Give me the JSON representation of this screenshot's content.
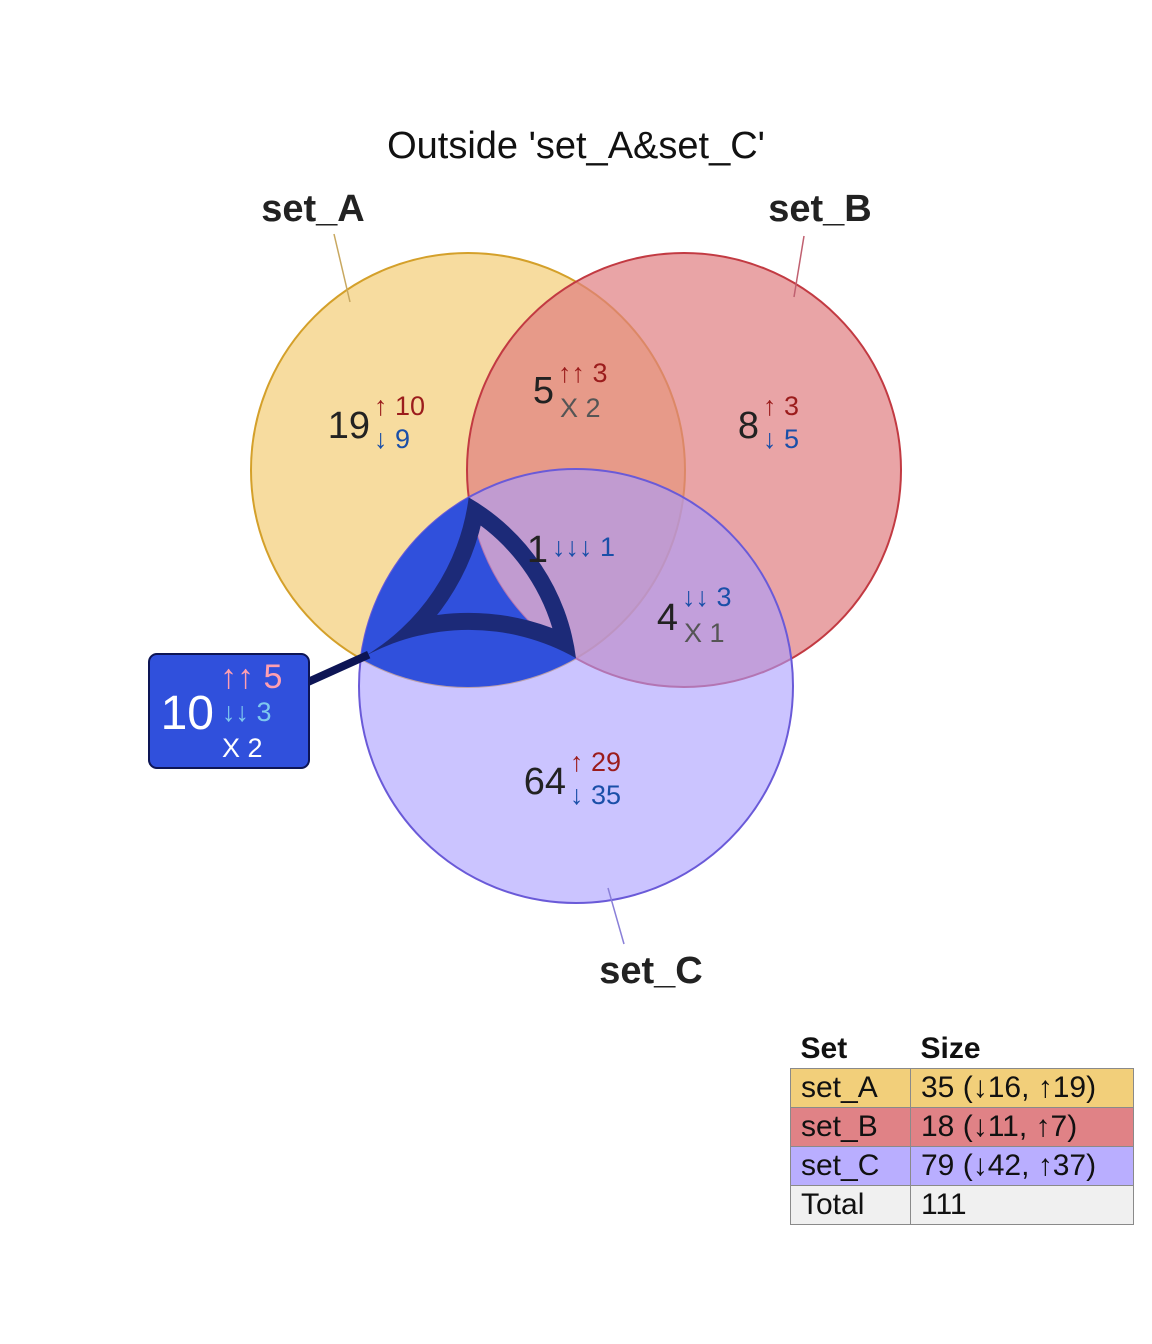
{
  "title": "Outside 'set_A&set_C'",
  "sets": [
    {
      "id": "A",
      "label": "set_A",
      "fill": "#f2c45f",
      "stroke": "#d4a02a",
      "labelColor": "#222222"
    },
    {
      "id": "B",
      "label": "set_B",
      "fill": "#e07d80",
      "stroke": "#c23a42",
      "labelColor": "#222222"
    },
    {
      "id": "C",
      "label": "set_C",
      "fill": "#a89cff",
      "stroke": "#6a5ad8",
      "labelColor": "#222222"
    }
  ],
  "regions": [
    {
      "id": "A-only",
      "count": "19",
      "lines": [
        {
          "sym": "↑",
          "num": "10",
          "color": "#9b1c1c"
        },
        {
          "sym": "↓",
          "num": "9",
          "color": "#1a4fa8"
        }
      ]
    },
    {
      "id": "AB-only",
      "count": "5",
      "lines": [
        {
          "sym": "↑↑",
          "num": "3",
          "color": "#9b1c1c"
        },
        {
          "sym": "X",
          "num": "2",
          "color": "#555555"
        }
      ]
    },
    {
      "id": "B-only",
      "count": "8",
      "lines": [
        {
          "sym": "↑",
          "num": "3",
          "color": "#9b1c1c"
        },
        {
          "sym": "↓",
          "num": "5",
          "color": "#1a4fa8"
        }
      ]
    },
    {
      "id": "ABC",
      "count": "1",
      "lines": [
        {
          "sym": "↓↓↓",
          "num": "1",
          "color": "#1a4fa8"
        }
      ]
    },
    {
      "id": "BC-only",
      "count": "4",
      "lines": [
        {
          "sym": "↓↓",
          "num": "3",
          "color": "#1a4fa8"
        },
        {
          "sym": "X",
          "num": "1",
          "color": "#555555"
        }
      ]
    },
    {
      "id": "C-only",
      "count": "64",
      "lines": [
        {
          "sym": "↑",
          "num": "29",
          "color": "#9b1c1c"
        },
        {
          "sym": "↓",
          "num": "35",
          "color": "#1a4fa8"
        }
      ]
    }
  ],
  "highlight": {
    "id": "AC-only",
    "count": "10",
    "fill": "#3050dc",
    "border": "#1c2a78",
    "lines": [
      {
        "sym": "↑↑",
        "num": "5",
        "color": "#ff9fb0"
      },
      {
        "sym": "↓↓",
        "num": "3",
        "color": "#7ec8ee"
      },
      {
        "sym": "X",
        "num": "2",
        "color": "#ffffff"
      }
    ]
  },
  "legend": {
    "headers": [
      "Set",
      "Size"
    ],
    "rows": [
      {
        "set": "set_A",
        "size": "35 (↓16, ↑19)",
        "color": "#f2cf7a"
      },
      {
        "set": "set_B",
        "size": "18 (↓11, ↑7)",
        "color": "#e08286"
      },
      {
        "set": "set_C",
        "size": "79 (↓42, ↑37)",
        "color": "#b9aeff"
      },
      {
        "set": "Total",
        "size": "111",
        "color": "#f0f0f0"
      }
    ]
  }
}
